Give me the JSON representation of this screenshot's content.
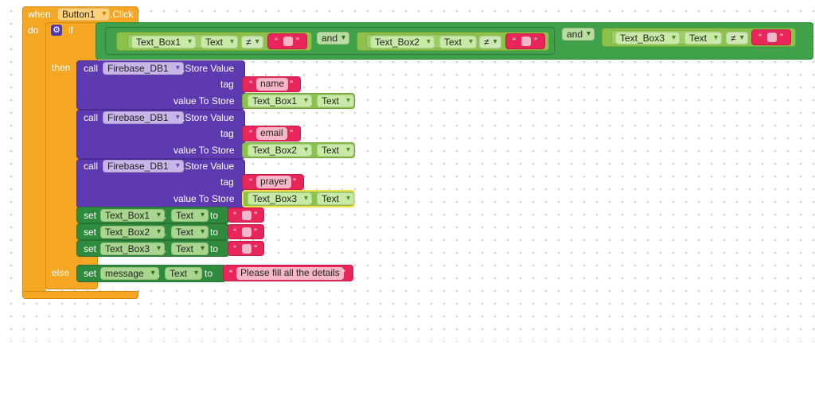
{
  "event": {
    "when_label": "when",
    "component": "Button1",
    "event_name": ".Click",
    "do_label": "do"
  },
  "if_block": {
    "if_label": "if",
    "then_label": "then",
    "else_label": "else",
    "and_label": "and",
    "conditions": [
      {
        "component": "Text_Box1",
        "property": "Text",
        "operator": "≠"
      },
      {
        "component": "Text_Box2",
        "property": "Text",
        "operator": "≠"
      },
      {
        "component": "Text_Box3",
        "property": "Text",
        "operator": "≠"
      }
    ],
    "open_quote": "“",
    "close_quote": "”"
  },
  "store_calls": [
    {
      "call_label": "call",
      "component": "Firebase_DB1",
      "method": ".Store Value",
      "tag_label": "tag",
      "tag": "name",
      "value_label": "value To Store",
      "value_component": "Text_Box1",
      "value_property": "Text"
    },
    {
      "call_label": "call",
      "component": "Firebase_DB1",
      "method": ".Store Value",
      "tag_label": "tag",
      "tag": "email",
      "value_label": "value To Store",
      "value_component": "Text_Box2",
      "value_property": "Text"
    },
    {
      "call_label": "call",
      "component": "Firebase_DB1",
      "method": ".Store Value",
      "tag_label": "tag",
      "tag": "prayer",
      "value_label": "value To Store",
      "value_component": "Text_Box3",
      "value_property": "Text"
    }
  ],
  "set_blocks": [
    {
      "set_label": "set",
      "component": "Text_Box1",
      "property": "Text",
      "to_label": "to"
    },
    {
      "set_label": "set",
      "component": "Text_Box2",
      "property": "Text",
      "to_label": "to"
    },
    {
      "set_label": "set",
      "component": "Text_Box3",
      "property": "Text",
      "to_label": "to"
    }
  ],
  "else_set": {
    "set_label": "set",
    "component": "message",
    "property": "Text",
    "to_label": "to",
    "value": "Please fill all the details"
  },
  "colors": {
    "event": "#f5a623",
    "control": "#3fa14a",
    "component_call": "#5e3ab0",
    "setter": "#2e8b3d",
    "text": "#e8265a"
  }
}
